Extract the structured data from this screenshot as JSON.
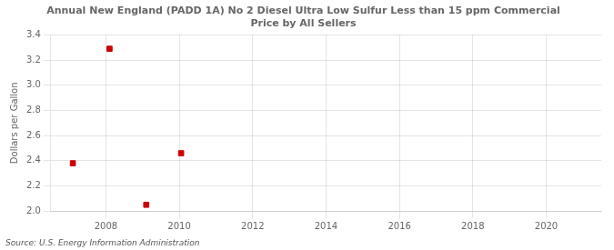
{
  "chart_data": {
    "type": "scatter",
    "title": "Annual New England (PADD 1A) No 2 Diesel Ultra Low Sulfur Less than 15 ppm Commercial\nPrice by All Sellers",
    "ylabel": "Dollars per Gallon",
    "source": "Source: U.S. Energy Information Administration",
    "x": [
      2007.1,
      2008.1,
      2009.1,
      2010.05
    ],
    "values": [
      2.38,
      3.29,
      2.05,
      2.46
    ],
    "color": "#cc0000",
    "marker": "square",
    "xlim": [
      2006.5,
      2021.5
    ],
    "ylim": [
      2.0,
      3.4
    ],
    "xticks": [
      2008,
      2010,
      2012,
      2014,
      2016,
      2018,
      2020
    ],
    "yticks": [
      {
        "value": 2.0,
        "label": "2.0"
      },
      2.2,
      2.4,
      2.6,
      2.8,
      {
        "value": 3.0,
        "label": "3.0"
      },
      3.2,
      3.4
    ],
    "grid": true
  }
}
